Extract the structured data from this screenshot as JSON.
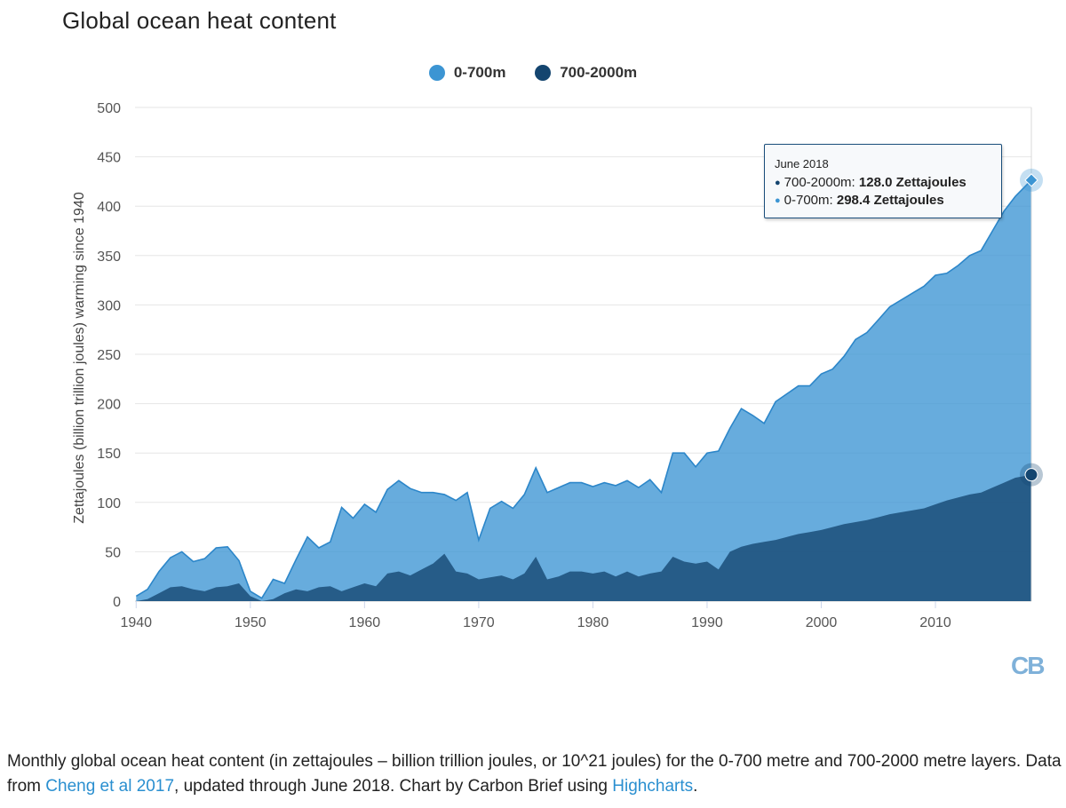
{
  "title": "Global ocean heat content",
  "legend": [
    {
      "label": "0-700m",
      "color": "#3c95d3"
    },
    {
      "label": "700-2000m",
      "color": "#14456f"
    }
  ],
  "tooltip": {
    "date": "June 2018",
    "rows": [
      {
        "series": "700-2000m",
        "label": "700-2000m: ",
        "value": "128.0 Zettajoules",
        "color": "#14456f"
      },
      {
        "series": "0-700m",
        "label": "0-700m: ",
        "value": "298.4 Zettajoules",
        "color": "#3c95d3"
      }
    ]
  },
  "logo": {
    "text": "CB",
    "color": "#7fb1d9"
  },
  "caption": {
    "part1": "Monthly global ocean heat content (in zettajoules – billion trillion joules, or 10^21 joules) for the 0-700 metre and 700-2000 metre layers. Data from ",
    "link1": "Cheng et al 2017",
    "part2": ", updated through June 2018. Chart by Carbon Brief using ",
    "link2": "Highcharts",
    "part3": "."
  },
  "chart_data": {
    "type": "area",
    "stacking": "normal",
    "title": "Global ocean heat content",
    "ylabel": "Zettajoules (billion trillion joules) warming since 1940",
    "xlabel": "",
    "xlim": [
      1939.9,
      2018.4
    ],
    "ylim": [
      0,
      500
    ],
    "yticks": [
      0,
      50,
      100,
      150,
      200,
      250,
      300,
      350,
      400,
      450,
      500
    ],
    "xticks": [
      1940,
      1950,
      1960,
      1970,
      1980,
      1990,
      2000,
      2010
    ],
    "grid": true,
    "legend_position": "top-center",
    "x": [
      1940.0,
      1941.0,
      1942.0,
      1943.0,
      1944.0,
      1945.0,
      1946.0,
      1947.0,
      1948.0,
      1949.0,
      1950.0,
      1951.0,
      1952.0,
      1953.0,
      1954.0,
      1955.0,
      1956.0,
      1957.0,
      1958.0,
      1959.0,
      1960.0,
      1961.0,
      1962.0,
      1963.0,
      1964.0,
      1965.0,
      1966.0,
      1967.0,
      1968.0,
      1969.0,
      1970.0,
      1971.0,
      1972.0,
      1973.0,
      1974.0,
      1975.0,
      1976.0,
      1977.0,
      1978.0,
      1979.0,
      1980.0,
      1981.0,
      1982.0,
      1983.0,
      1984.0,
      1985.0,
      1986.0,
      1987.0,
      1988.0,
      1989.0,
      1990.0,
      1991.0,
      1992.0,
      1993.0,
      1994.0,
      1995.0,
      1996.0,
      1997.0,
      1998.0,
      1999.0,
      2000.0,
      2001.0,
      2002.0,
      2003.0,
      2004.0,
      2005.0,
      2006.0,
      2007.0,
      2008.0,
      2009.0,
      2010.0,
      2011.0,
      2012.0,
      2013.0,
      2014.0,
      2015.0,
      2016.0,
      2017.0,
      2018.4
    ],
    "series": [
      {
        "name": "700-2000m",
        "color": "#14456f",
        "values": [
          0,
          2,
          8,
          14,
          15,
          12,
          10,
          14,
          15,
          18,
          5,
          0,
          2,
          8,
          12,
          10,
          14,
          15,
          10,
          14,
          18,
          15,
          28,
          30,
          26,
          32,
          38,
          48,
          30,
          28,
          22,
          24,
          26,
          22,
          28,
          45,
          22,
          25,
          30,
          30,
          28,
          30,
          25,
          30,
          25,
          28,
          30,
          45,
          40,
          38,
          40,
          32,
          50,
          55,
          58,
          60,
          62,
          65,
          68,
          70,
          72,
          75,
          78,
          80,
          82,
          85,
          88,
          90,
          92,
          94,
          98,
          102,
          105,
          108,
          110,
          115,
          120,
          125,
          128
        ]
      },
      {
        "name": "0-700m",
        "color": "#3c95d3",
        "values": [
          5,
          10,
          22,
          30,
          35,
          28,
          33,
          40,
          40,
          23,
          5,
          3,
          20,
          10,
          30,
          55,
          40,
          45,
          85,
          70,
          80,
          75,
          85,
          92,
          88,
          78,
          72,
          60,
          72,
          82,
          40,
          70,
          75,
          72,
          80,
          90,
          88,
          90,
          90,
          90,
          88,
          90,
          92,
          92,
          90,
          95,
          80,
          105,
          110,
          98,
          110,
          120,
          125,
          140,
          130,
          120,
          140,
          145,
          150,
          148,
          158,
          160,
          170,
          185,
          190,
          200,
          210,
          215,
          220,
          225,
          232,
          230,
          235,
          242,
          245,
          260,
          275,
          285,
          298.4
        ]
      }
    ]
  }
}
